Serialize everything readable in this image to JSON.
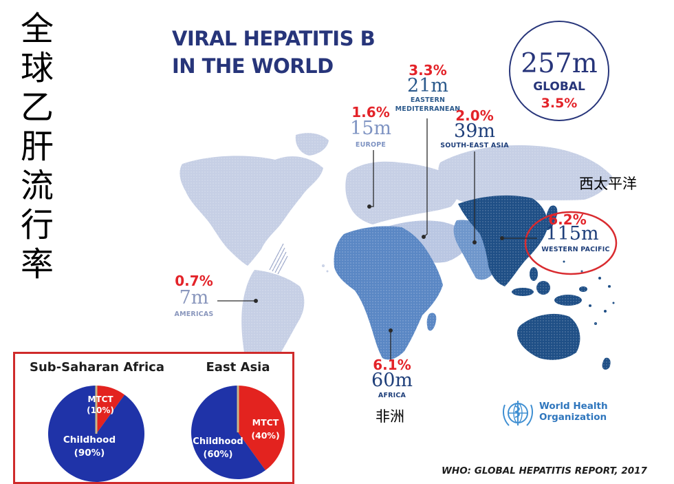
{
  "side_title": [
    "全",
    "球",
    "乙",
    "肝",
    "流",
    "行",
    "率"
  ],
  "title": [
    "VIRAL HEPATITIS B",
    "IN THE WORLD"
  ],
  "global": {
    "value": "257m",
    "label": "GLOBAL",
    "pct": "3.5%"
  },
  "regions": {
    "emro": {
      "pct": "3.3%",
      "value": "21m",
      "name1": "EASTERN",
      "name2": "MEDITERRANEAN"
    },
    "euro": {
      "pct": "1.6%",
      "value": "15m",
      "name": "EUROPE"
    },
    "searo": {
      "pct": "2.0%",
      "value": "39m",
      "name": "SOUTH-EAST ASIA"
    },
    "wpro": {
      "pct": "6.2%",
      "value": "115m",
      "name": "WESTERN PACIFIC"
    },
    "amro": {
      "pct": "0.7%",
      "value": "7m",
      "name": "AMERICAS"
    },
    "afro": {
      "pct": "6.1%",
      "value": "60m",
      "name": "AFRICA"
    }
  },
  "cn_labels": {
    "west_pacific": "西太平洋",
    "africa": "非洲"
  },
  "who": {
    "line1": "World Health",
    "line2": "Organization"
  },
  "source": "WHO: GLOBAL HEPATITIS REPORT, 2017",
  "pies": [
    {
      "title": "Sub-Saharan Africa",
      "slices": [
        {
          "name": "MTCT",
          "label": "(10%)",
          "value": 10,
          "color": "#e3231f"
        },
        {
          "name": "Childhood",
          "label": "(90%)",
          "value": 90,
          "color": "#1f33a8"
        }
      ]
    },
    {
      "title": "East Asia",
      "slices": [
        {
          "name": "MTCT",
          "label": "(40%)",
          "value": 40,
          "color": "#e3231f"
        },
        {
          "name": "Childhood",
          "label": "(60%)",
          "value": 60,
          "color": "#1f33a8"
        }
      ]
    }
  ],
  "colors": {
    "title": "#27357a",
    "pct": "#e32329",
    "dark_region": "#1f4f86",
    "mid_region": "#5f88c0",
    "light_region": "#c3cde4",
    "highlight": "#d92b2f"
  }
}
